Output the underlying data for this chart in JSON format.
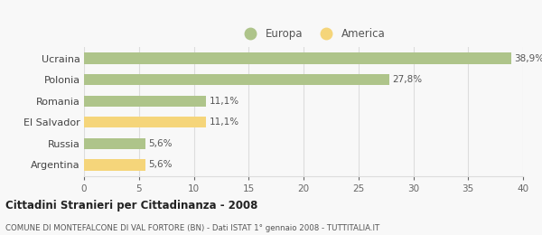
{
  "categories": [
    "Ucraina",
    "Polonia",
    "Romania",
    "El Salvador",
    "Russia",
    "Argentina"
  ],
  "values": [
    38.9,
    27.8,
    11.1,
    11.1,
    5.6,
    5.6
  ],
  "labels": [
    "38,9%",
    "27,8%",
    "11,1%",
    "11,1%",
    "5,6%",
    "5,6%"
  ],
  "colors": [
    "#aec48a",
    "#aec48a",
    "#aec48a",
    "#f5d57a",
    "#aec48a",
    "#f5d57a"
  ],
  "europa_color": "#aec48a",
  "america_color": "#f5d57a",
  "xlim": [
    0,
    40
  ],
  "xticks": [
    0,
    5,
    10,
    15,
    20,
    25,
    30,
    35,
    40
  ],
  "title": "Cittadini Stranieri per Cittadinanza - 2008",
  "subtitle": "COMUNE DI MONTEFALCONE DI VAL FORTORE (BN) - Dati ISTAT 1° gennaio 2008 - TUTTITALIA.IT",
  "legend_europa": "Europa",
  "legend_america": "America",
  "background_color": "#f8f8f8",
  "grid_color": "#dddddd",
  "bar_height": 0.52
}
